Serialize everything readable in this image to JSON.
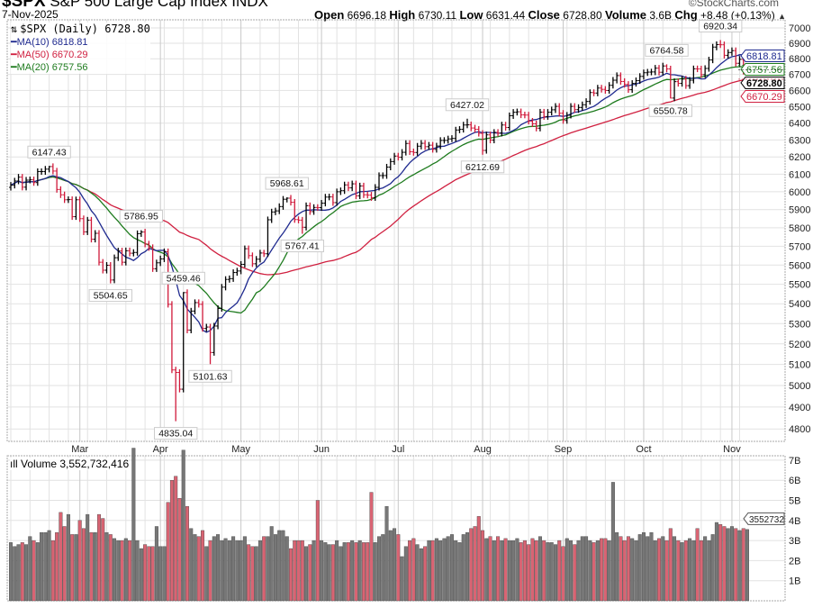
{
  "header": {
    "symbol": "$SPX",
    "name": "S&P 500 Large Cap Index INDX",
    "date": "7-Nov-2025",
    "copyright": "©StockCharts.com",
    "open_label": "Open",
    "open": "6696.18",
    "high_label": "High",
    "high": "6730.11",
    "low_label": "Low",
    "low": "6631.44",
    "close_label": "Close",
    "close": "6728.80",
    "volume_label": "Volume",
    "volume": "3.6B",
    "chg_label": "Chg",
    "chg": "+8.48 (+0.13%)",
    "chg_arrow": "▲"
  },
  "legend": {
    "main": "$SPX (Daily) 6728.80",
    "ma10": "MA(10) 6818.81",
    "ma50": "MA(50) 6670.29",
    "ma20": "MA(20) 6757.56",
    "volume": "Volume 3,552,732,416"
  },
  "colors": {
    "up": "#000000",
    "down": "#d0193a",
    "ma10": "#1f2a8f",
    "ma20": "#1e7b1e",
    "ma50": "#d02040",
    "vol_up": "#777777",
    "vol_down": "#d96473",
    "grid": "#e2e2e2"
  },
  "chart_data": [
    {
      "type": "ohlc",
      "scale": "log",
      "ylim": [
        4750,
        7050
      ],
      "y_ticks": [
        4800,
        4900,
        5000,
        5100,
        5200,
        5300,
        5400,
        5500,
        5600,
        5700,
        5800,
        5900,
        6000,
        6100,
        6200,
        6300,
        6400,
        6500,
        6600,
        6700,
        6800,
        6900,
        7000
      ],
      "x_tick_labels": [
        "Mar",
        "Apr",
        "May",
        "Jun",
        "Jul",
        "Aug",
        "Sep",
        "Oct",
        "Nov"
      ],
      "grid": true,
      "months": [
        {
          "month": "Feb",
          "days": [
            4,
            5,
            6,
            7,
            10,
            11,
            12,
            13,
            14,
            18,
            19,
            20,
            21,
            24,
            25,
            26,
            27,
            28
          ],
          "close": [
            6037,
            6061,
            6083,
            6026,
            6066,
            6068,
            6052,
            6115,
            6115,
            6129,
            6144,
            6118,
            6013,
            5983,
            5955,
            5956,
            5861,
            5955
          ],
          "volume": [
            2.9,
            2.7,
            2.8,
            2.9,
            2.8,
            3.2,
            3.0,
            2.9,
            3.4,
            3.4,
            3.5,
            3.0,
            3.4,
            4.4,
            3.7,
            4.3,
            3.3,
            3.3
          ]
        },
        {
          "month": "Mar",
          "days": [
            3,
            4,
            5,
            6,
            7,
            10,
            11,
            12,
            13,
            14,
            17,
            18,
            19,
            20,
            21,
            24,
            25,
            26,
            27,
            28,
            31
          ],
          "close": [
            5850,
            5778,
            5842,
            5738,
            5770,
            5615,
            5573,
            5599,
            5522,
            5639,
            5675,
            5615,
            5676,
            5663,
            5667,
            5768,
            5777,
            5712,
            5693,
            5581,
            5612
          ],
          "volume": [
            4.0,
            3.6,
            4.3,
            3.4,
            3.4,
            4.3,
            4.1,
            3.4,
            3.3,
            3.1,
            3.0,
            3.0,
            3.1,
            3.0,
            7.6,
            3.0,
            2.6,
            2.8,
            2.7,
            2.7,
            3.7
          ]
        },
        {
          "month": "Apr",
          "days": [
            1,
            2,
            3,
            4,
            7,
            8,
            9,
            10,
            11,
            14,
            15,
            16,
            17,
            21,
            22,
            23,
            24,
            25,
            28,
            29,
            30
          ],
          "close": [
            5633,
            5671,
            5397,
            5074,
            5062,
            4983,
            5457,
            5268,
            5363,
            5406,
            5397,
            5276,
            5283,
            5158,
            5288,
            5376,
            5485,
            5525,
            5529,
            5561,
            5569
          ],
          "volume": [
            2.7,
            2.7,
            4.9,
            6.0,
            6.2,
            5.1,
            7.5,
            4.7,
            3.6,
            3.3,
            3.2,
            3.5,
            2.7,
            3.0,
            3.2,
            3.3,
            3.0,
            3.1,
            3.0,
            3.2,
            3.0
          ]
        },
        {
          "month": "May",
          "days": [
            1,
            2,
            5,
            6,
            7,
            8,
            9,
            12,
            13,
            14,
            15,
            16,
            19,
            20,
            21,
            22,
            23,
            27,
            28,
            29,
            30
          ],
          "close": [
            5604,
            5687,
            5650,
            5607,
            5631,
            5664,
            5660,
            5844,
            5887,
            5893,
            5917,
            5958,
            5964,
            5941,
            5845,
            5842,
            5803,
            5922,
            5889,
            5912,
            5911
          ],
          "volume": [
            3.0,
            3.2,
            2.8,
            2.7,
            2.7,
            3.0,
            3.2,
            3.2,
            3.7,
            3.3,
            3.5,
            3.5,
            3.2,
            2.6,
            3.0,
            3.0,
            3.0,
            2.7,
            2.8,
            3.0,
            5.0
          ]
        },
        {
          "month": "Jun",
          "days": [
            2,
            3,
            4,
            5,
            6,
            9,
            10,
            11,
            12,
            13,
            16,
            17,
            18,
            20,
            23,
            24,
            25,
            26,
            27,
            30
          ],
          "close": [
            5936,
            5970,
            5971,
            5939,
            6000,
            6006,
            6039,
            6022,
            6045,
            5977,
            6033,
            5983,
            5981,
            5967,
            6025,
            6092,
            6092,
            6141,
            6173,
            6205
          ],
          "volume": [
            3.0,
            2.9,
            2.8,
            2.8,
            3.0,
            2.7,
            2.9,
            2.9,
            3.0,
            2.9,
            3.0,
            2.9,
            2.9,
            5.4,
            2.9,
            3.2,
            3.3,
            4.7,
            3.5,
            3.6
          ]
        },
        {
          "month": "Jul",
          "days": [
            1,
            2,
            3,
            7,
            8,
            9,
            10,
            11,
            14,
            15,
            16,
            17,
            18,
            21,
            22,
            23,
            24,
            25,
            28,
            29,
            30,
            31
          ],
          "close": [
            6198,
            6227,
            6279,
            6230,
            6226,
            6263,
            6280,
            6260,
            6269,
            6244,
            6264,
            6297,
            6297,
            6306,
            6309,
            6359,
            6363,
            6389,
            6390,
            6371,
            6363,
            6339
          ],
          "volume": [
            3.3,
            2.2,
            2.7,
            3.0,
            3.1,
            2.8,
            2.6,
            2.7,
            3.0,
            3.0,
            3.1,
            3.0,
            3.1,
            3.2,
            3.3,
            3.0,
            2.9,
            3.3,
            3.4,
            3.6,
            3.7,
            4.2
          ]
        },
        {
          "month": "Aug",
          "days": [
            1,
            4,
            5,
            6,
            7,
            8,
            11,
            12,
            13,
            14,
            15,
            18,
            19,
            20,
            21,
            22,
            25,
            26,
            27,
            28,
            29
          ],
          "close": [
            6238,
            6330,
            6299,
            6345,
            6340,
            6389,
            6374,
            6445,
            6466,
            6469,
            6450,
            6449,
            6412,
            6396,
            6370,
            6467,
            6440,
            6466,
            6481,
            6502,
            6460
          ],
          "volume": [
            3.5,
            3.1,
            3.2,
            3.0,
            3.2,
            3.0,
            3.1,
            3.0,
            3.0,
            3.1,
            2.9,
            3.0,
            2.8,
            3.1,
            3.0,
            3.2,
            3.0,
            2.9,
            2.9,
            2.8,
            3.0
          ]
        },
        {
          "month": "Sep",
          "days": [
            2,
            3,
            4,
            5,
            8,
            9,
            10,
            11,
            12,
            15,
            16,
            17,
            18,
            19,
            22,
            23,
            24,
            25,
            26,
            29,
            30
          ],
          "close": [
            6416,
            6448,
            6502,
            6482,
            6495,
            6512,
            6532,
            6587,
            6584,
            6615,
            6607,
            6600,
            6632,
            6664,
            6693,
            6656,
            6638,
            6605,
            6644,
            6661,
            6688
          ],
          "volume": [
            2.7,
            3.1,
            3.0,
            2.8,
            3.0,
            3.2,
            3.2,
            3.0,
            2.9,
            3.0,
            3.1,
            3.1,
            3.0,
            5.9,
            3.4,
            3.2,
            3.0,
            3.2,
            3.1,
            3.0,
            3.3
          ]
        },
        {
          "month": "Oct",
          "days": [
            1,
            2,
            3,
            6,
            7,
            8,
            9,
            10,
            13,
            14,
            15,
            16,
            17,
            20,
            21,
            22,
            23,
            24,
            27,
            28,
            29,
            30,
            31
          ],
          "close": [
            6711,
            6715,
            6716,
            6740,
            6714,
            6754,
            6735,
            6553,
            6655,
            6644,
            6671,
            6630,
            6664,
            6736,
            6735,
            6699,
            6738,
            6792,
            6875,
            6891,
            6890,
            6822,
            6840
          ],
          "volume": [
            3.4,
            3.2,
            3.4,
            3.0,
            3.1,
            3.2,
            3.0,
            3.6,
            3.2,
            3.0,
            2.9,
            3.0,
            3.1,
            3.0,
            3.6,
            3.0,
            3.2,
            3.0,
            3.3,
            3.9,
            3.8,
            3.7,
            3.6
          ]
        },
        {
          "month": "Nov",
          "days": [
            3,
            4,
            5,
            6,
            7
          ],
          "close": [
            6852,
            6771,
            6796,
            6720,
            6728.8
          ],
          "volume": [
            3.7,
            3.6,
            3.5,
            3.6,
            3.55
          ]
        }
      ],
      "annotations": [
        {
          "text": "6147.43",
          "month": "Feb",
          "day": 19,
          "side": "above"
        },
        {
          "text": "5786.95",
          "month": "Mar",
          "day": 25,
          "side": "above"
        },
        {
          "text": "5504.65",
          "month": "Mar",
          "day": 13,
          "side": "below"
        },
        {
          "text": "5459.46",
          "month": "Apr",
          "day": 9,
          "side": "above"
        },
        {
          "text": "4835.04",
          "month": "Apr",
          "day": 7,
          "side": "below"
        },
        {
          "text": "5101.63",
          "month": "Apr",
          "day": 21,
          "side": "below"
        },
        {
          "text": "5968.61",
          "month": "May",
          "day": 19,
          "side": "above"
        },
        {
          "text": "5767.41",
          "month": "May",
          "day": 23,
          "side": "below"
        },
        {
          "text": "6427.02",
          "month": "Jul",
          "day": 28,
          "side": "above"
        },
        {
          "text": "6212.69",
          "month": "Aug",
          "day": 1,
          "side": "below"
        },
        {
          "text": "6764.58",
          "month": "Oct",
          "day": 9,
          "side": "above"
        },
        {
          "text": "6550.78",
          "month": "Oct",
          "day": 10,
          "side": "below"
        },
        {
          "text": "6920.34",
          "month": "Oct",
          "day": 29,
          "side": "above"
        }
      ],
      "price_tags": [
        {
          "text": "6818.81",
          "value": 6818.81,
          "color": "#1f2a8f"
        },
        {
          "text": "6757.56",
          "value": 6757.56,
          "color": "#1e7b1e"
        },
        {
          "text": "6670.29",
          "value": 6670.29,
          "color": "#d02040"
        },
        {
          "text": "6728.80",
          "value": 6728.8,
          "color": "#000000",
          "bold": true
        }
      ]
    },
    {
      "type": "bar",
      "series": "volume",
      "ylim": [
        0,
        7.4
      ],
      "y_ticks": [
        "1B",
        "2B",
        "3B",
        "4B",
        "5B",
        "6B",
        "7B"
      ],
      "last_tag": "3552732"
    }
  ]
}
